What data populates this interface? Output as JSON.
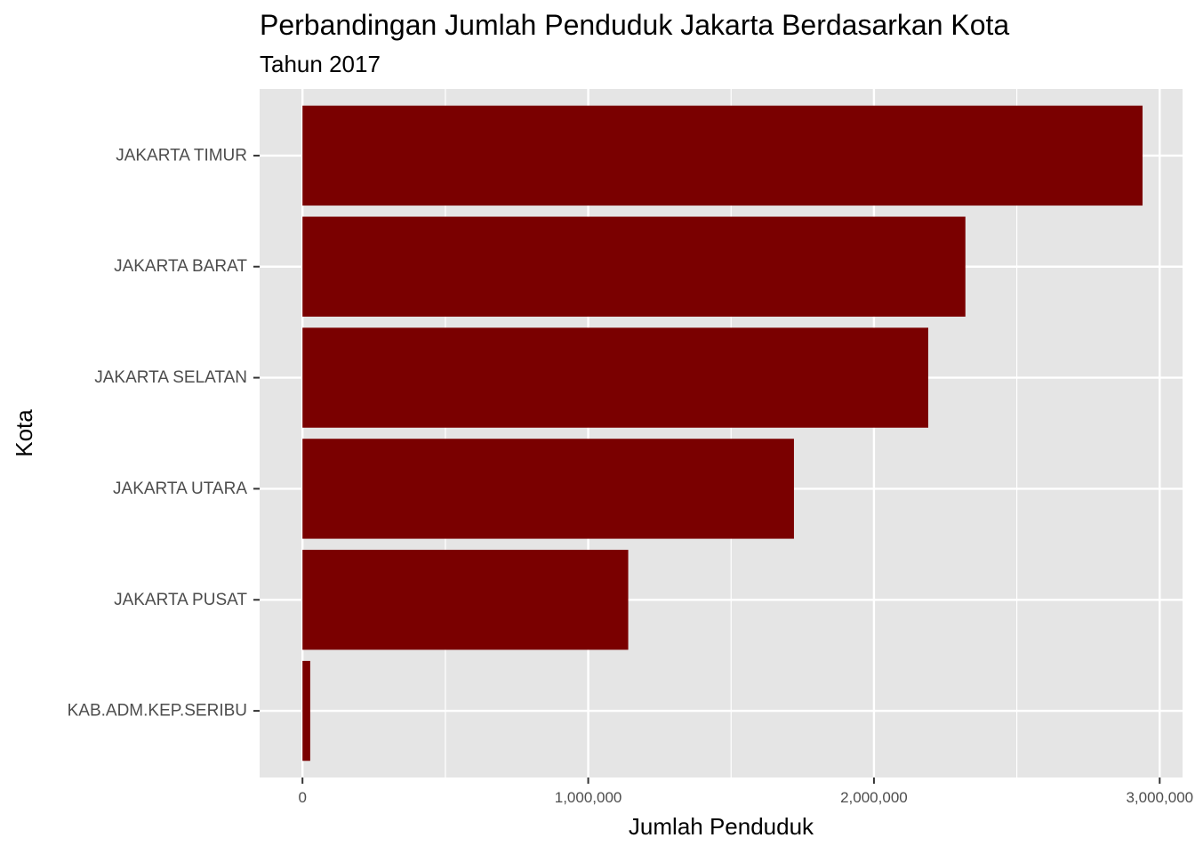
{
  "chart_data": {
    "type": "bar",
    "orientation": "horizontal",
    "title": "Perbandingan Jumlah Penduduk Jakarta Berdasarkan Kota",
    "subtitle": "Tahun 2017",
    "xlabel": "Jumlah Penduduk",
    "ylabel": "Kota",
    "categories": [
      "JAKARTA TIMUR",
      "JAKARTA BARAT",
      "JAKARTA SELATAN",
      "JAKARTA UTARA",
      "JAKARTA PUSAT",
      "KAB.ADM.KEP.SERIBU"
    ],
    "values": [
      2940000,
      2320000,
      2190000,
      1720000,
      1140000,
      27000
    ],
    "xlim": [
      -150000,
      3080000
    ],
    "xticks": [
      0,
      1000000,
      2000000,
      3000000
    ],
    "xtick_labels": [
      "0",
      "1,000,000",
      "2,000,000",
      "3,000,000"
    ],
    "grid": true,
    "legend": "none",
    "bar_color": "#7A0000",
    "panel_background": "#E5E5E5"
  }
}
